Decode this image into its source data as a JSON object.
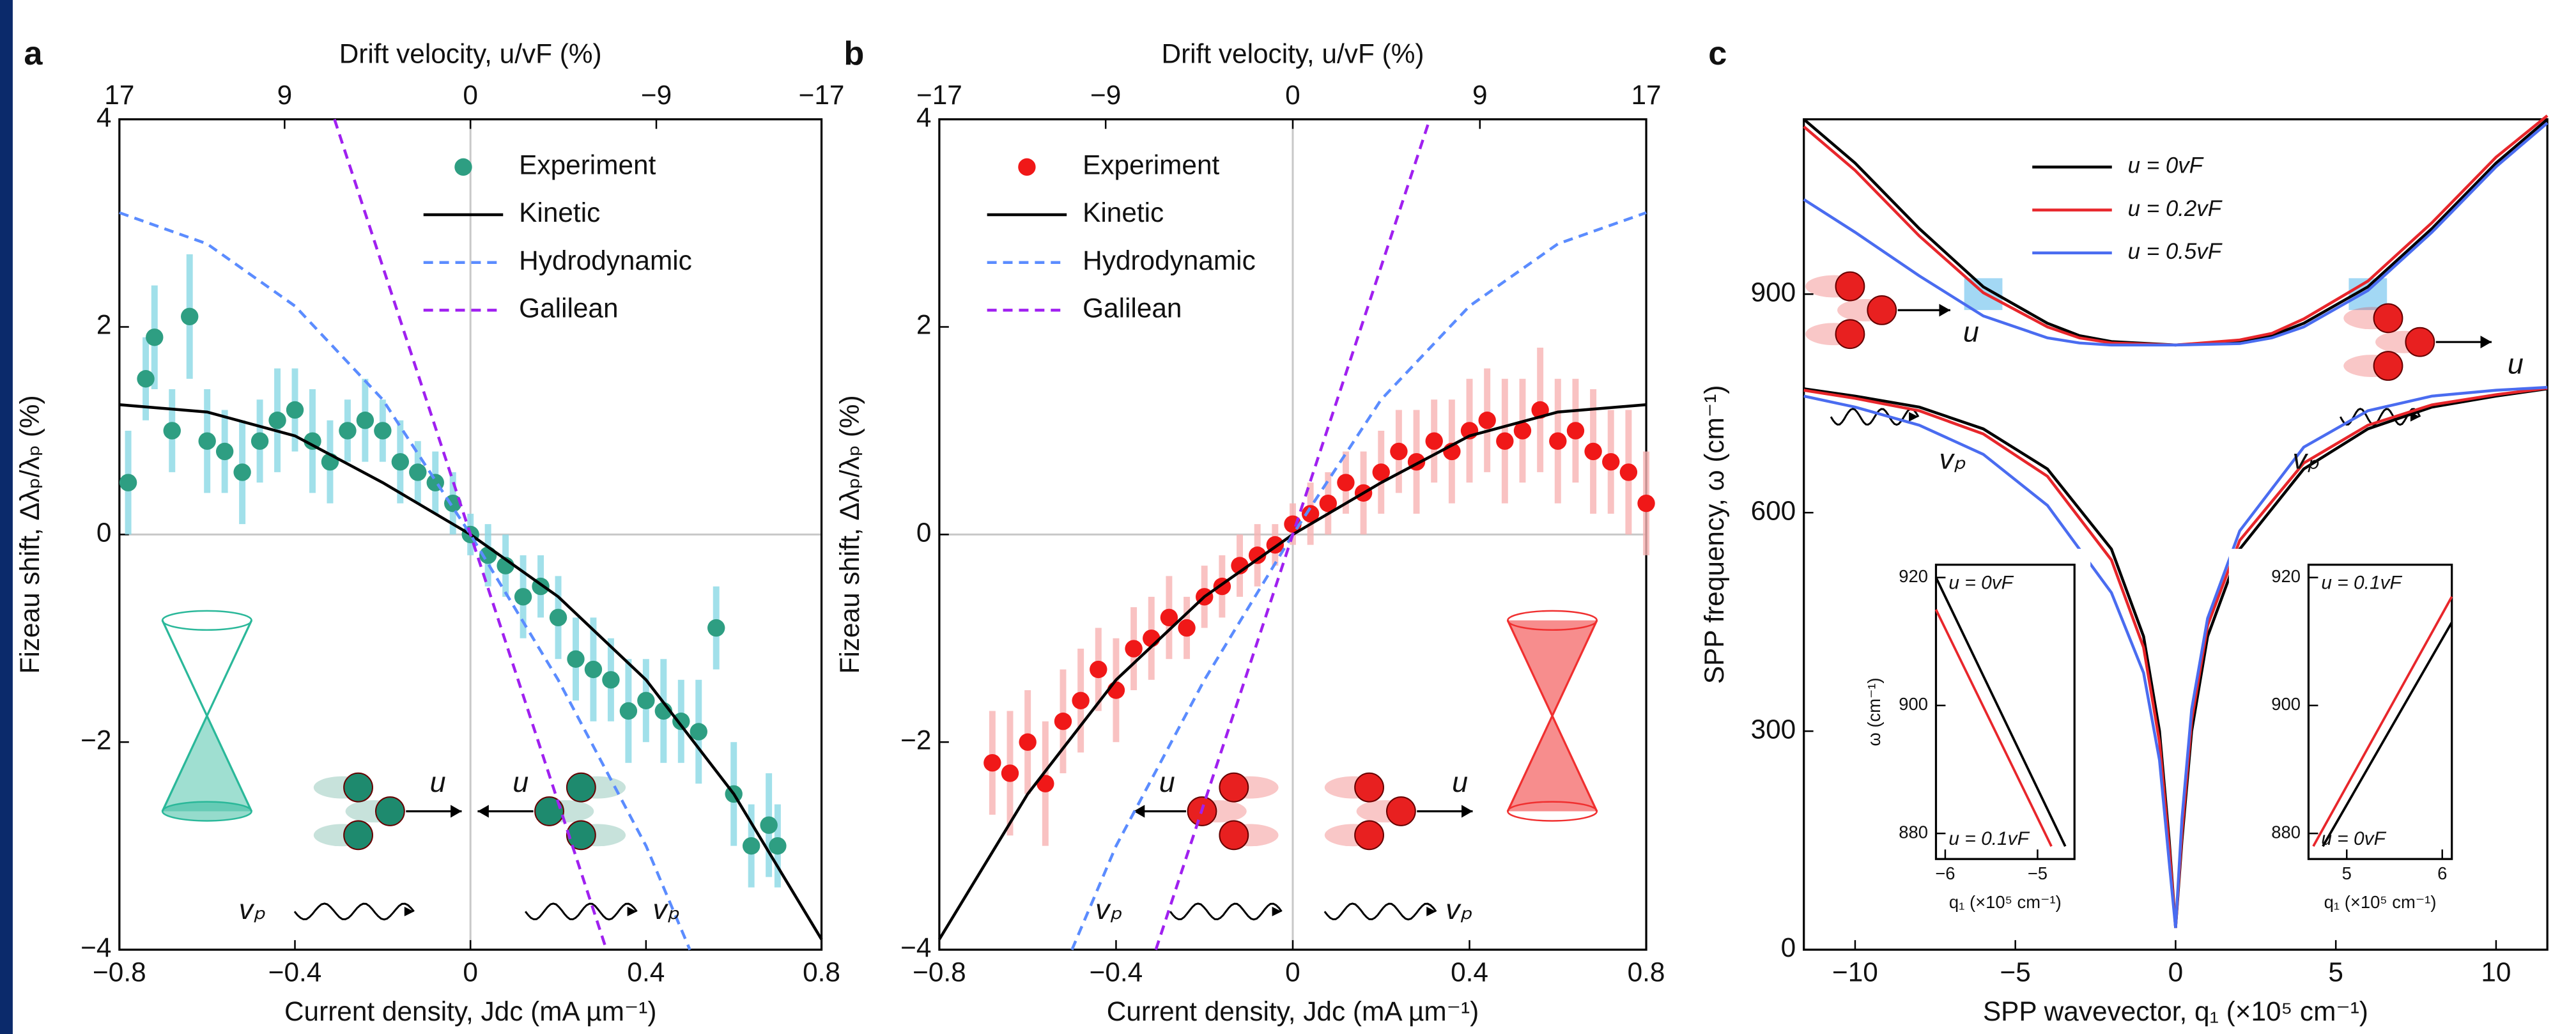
{
  "chart_data": [
    {
      "type": "scatter",
      "panel": "a",
      "x2label": "Drift velocity, u/vF (%)",
      "xlabel": "Current density, Jdc (mA µm⁻¹)",
      "ylabel": "Fizeau shift, Δλₚ/λₚ (%)",
      "xlim": [
        -0.8,
        0.8
      ],
      "xticks": [
        {
          "value": -0.8,
          "label": "−0.8"
        },
        {
          "value": -0.4,
          "label": "−0.4"
        },
        0,
        0.4,
        0.8
      ],
      "x2lim": [
        17,
        -17
      ],
      "x2ticks": [
        17,
        9,
        0,
        {
          "value": -9,
          "label": "−9"
        },
        {
          "value": -17,
          "label": "−17"
        }
      ],
      "ylim": [
        -4,
        4
      ],
      "yticks": [
        {
          "value": -4,
          "label": "−4"
        },
        {
          "value": -2,
          "label": "−2"
        },
        0,
        2,
        4
      ],
      "zero_lines": true,
      "legend": "upper right",
      "annotations": [
        "u",
        "u",
        "vₚ",
        "vₚ"
      ],
      "decor_color": "#2bb89a",
      "series": [
        {
          "name": "Experiment",
          "mode": "markers",
          "color": "#2e9e82",
          "error_color": "#8ad9e6",
          "x": [
            -0.78,
            -0.74,
            -0.72,
            -0.68,
            -0.64,
            -0.6,
            -0.56,
            -0.52,
            -0.48,
            -0.44,
            -0.4,
            -0.36,
            -0.32,
            -0.28,
            -0.24,
            -0.2,
            -0.16,
            -0.12,
            -0.08,
            -0.04,
            0,
            0.04,
            0.08,
            0.12,
            0.16,
            0.2,
            0.24,
            0.28,
            0.32,
            0.36,
            0.4,
            0.44,
            0.48,
            0.52,
            0.56,
            0.6,
            0.64,
            0.68,
            0.7
          ],
          "values": [
            0.5,
            1.5,
            1.9,
            1.0,
            2.1,
            0.9,
            0.8,
            0.6,
            0.9,
            1.1,
            1.2,
            0.9,
            0.7,
            1.0,
            1.1,
            1.0,
            0.7,
            0.6,
            0.5,
            0.3,
            0,
            -0.2,
            -0.3,
            -0.6,
            -0.5,
            -0.8,
            -1.2,
            -1.3,
            -1.4,
            -1.7,
            -1.6,
            -1.7,
            -1.8,
            -1.9,
            -0.9,
            -2.5,
            -3.0,
            -2.8,
            -3.0
          ],
          "errors": [
            0.5,
            0.4,
            0.5,
            0.4,
            0.6,
            0.5,
            0.4,
            0.5,
            0.4,
            0.5,
            0.4,
            0.5,
            0.4,
            0.3,
            0.4,
            0.3,
            0.4,
            0.3,
            0.3,
            0.3,
            0.2,
            0.3,
            0.3,
            0.4,
            0.3,
            0.4,
            0.4,
            0.5,
            0.4,
            0.5,
            0.4,
            0.5,
            0.4,
            0.5,
            0.4,
            0.5,
            0.4,
            0.5,
            0.4
          ]
        },
        {
          "name": "Kinetic",
          "mode": "line",
          "color": "#000000",
          "x": [
            -0.8,
            -0.6,
            -0.4,
            -0.2,
            0,
            0.2,
            0.4,
            0.6,
            0.8
          ],
          "values": [
            1.25,
            1.18,
            0.95,
            0.5,
            0,
            -0.6,
            -1.4,
            -2.5,
            -3.9
          ]
        },
        {
          "name": "Hydrodynamic",
          "mode": "line",
          "dash": true,
          "color": "#5b8cff",
          "x": [
            -0.8,
            -0.6,
            -0.4,
            -0.2,
            0,
            0.2,
            0.4,
            0.5
          ],
          "values": [
            3.1,
            2.8,
            2.2,
            1.3,
            0,
            -1.4,
            -3.0,
            -4
          ]
        },
        {
          "name": "Galilean",
          "mode": "line",
          "dash": true,
          "color": "#a020f0",
          "x": [
            -0.31,
            0.31
          ],
          "values": [
            4,
            -4
          ]
        }
      ]
    },
    {
      "type": "scatter",
      "panel": "b",
      "x2label": "Drift velocity, u/vF (%)",
      "xlabel": "Current density, Jdc (mA µm⁻¹)",
      "ylabel": "Fizeau shift, Δλₚ/λₚ (%)",
      "xlim": [
        -0.8,
        0.8
      ],
      "xticks": [
        {
          "value": -0.8,
          "label": "−0.8"
        },
        {
          "value": -0.4,
          "label": "−0.4"
        },
        0,
        0.4,
        0.8
      ],
      "x2lim": [
        -17,
        17
      ],
      "x2ticks": [
        {
          "value": -17,
          "label": "−17"
        },
        {
          "value": -9,
          "label": "−9"
        },
        0,
        9,
        17
      ],
      "ylim": [
        -4,
        4
      ],
      "yticks": [
        {
          "value": -4,
          "label": "−4"
        },
        {
          "value": -2,
          "label": "−2"
        },
        0,
        2,
        4
      ],
      "zero_lines": true,
      "legend": "upper left",
      "annotations": [
        "u",
        "u",
        "vₚ",
        "vₚ"
      ],
      "decor_color": "#f03030",
      "series": [
        {
          "name": "Experiment",
          "mode": "markers",
          "color": "#f01818",
          "error_color": "#f8b4b4",
          "x": [
            -0.68,
            -0.64,
            -0.6,
            -0.56,
            -0.52,
            -0.48,
            -0.44,
            -0.4,
            -0.36,
            -0.32,
            -0.28,
            -0.24,
            -0.2,
            -0.16,
            -0.12,
            -0.08,
            -0.04,
            0,
            0.04,
            0.08,
            0.12,
            0.16,
            0.2,
            0.24,
            0.28,
            0.32,
            0.36,
            0.4,
            0.44,
            0.48,
            0.52,
            0.56,
            0.6,
            0.64,
            0.68,
            0.72,
            0.76,
            0.8
          ],
          "values": [
            -2.2,
            -2.3,
            -2.0,
            -2.4,
            -1.8,
            -1.6,
            -1.3,
            -1.5,
            -1.1,
            -1.0,
            -0.8,
            -0.9,
            -0.6,
            -0.5,
            -0.3,
            -0.2,
            -0.1,
            0.1,
            0.2,
            0.3,
            0.5,
            0.4,
            0.6,
            0.8,
            0.7,
            0.9,
            0.8,
            1.0,
            1.1,
            0.9,
            1.0,
            1.2,
            0.9,
            1.0,
            0.8,
            0.7,
            0.6,
            0.3
          ],
          "errors": [
            0.5,
            0.6,
            0.5,
            0.6,
            0.5,
            0.5,
            0.4,
            0.5,
            0.4,
            0.4,
            0.4,
            0.3,
            0.3,
            0.3,
            0.3,
            0.3,
            0.2,
            0.2,
            0.3,
            0.3,
            0.3,
            0.4,
            0.4,
            0.4,
            0.5,
            0.4,
            0.5,
            0.5,
            0.5,
            0.6,
            0.5,
            0.6,
            0.6,
            0.5,
            0.6,
            0.5,
            0.6,
            0.5
          ]
        },
        {
          "name": "Kinetic",
          "mode": "line",
          "color": "#000000",
          "x": [
            -0.8,
            -0.6,
            -0.4,
            -0.2,
            0,
            0.2,
            0.4,
            0.6,
            0.8
          ],
          "values": [
            -3.9,
            -2.5,
            -1.4,
            -0.6,
            0,
            0.5,
            0.95,
            1.18,
            1.25
          ]
        },
        {
          "name": "Hydrodynamic",
          "mode": "line",
          "dash": true,
          "color": "#5b8cff",
          "x": [
            -0.5,
            -0.4,
            -0.2,
            0,
            0.2,
            0.4,
            0.6,
            0.8
          ],
          "values": [
            -4,
            -3.0,
            -1.4,
            0,
            1.3,
            2.2,
            2.8,
            3.1
          ]
        },
        {
          "name": "Galilean",
          "mode": "line",
          "dash": true,
          "color": "#a020f0",
          "x": [
            -0.31,
            0.31
          ],
          "values": [
            -4,
            4
          ]
        }
      ]
    },
    {
      "type": "line",
      "panel": "c",
      "xlabel": "SPP wavevector, q₁ (×10⁵ cm⁻¹)",
      "ylabel": "SPP frequency, ω (cm⁻¹)",
      "xlim": [
        -11.6,
        11.6
      ],
      "xticks": [
        {
          "value": -10,
          "label": "−10"
        },
        {
          "value": -5,
          "label": "−5"
        },
        0,
        5,
        10
      ],
      "ylim": [
        0,
        1140
      ],
      "yticks": [
        0,
        300,
        600,
        900
      ],
      "legend": "upper center",
      "annotations": [
        "u",
        "u",
        "vₚ",
        "vₚ"
      ],
      "decor_color": "#f03030",
      "series": [
        {
          "name": "u = 0vF",
          "color": "#000000",
          "branches": [
            {
              "x": [
                -11.6,
                -10,
                -8,
                -6,
                -4,
                -3,
                -2,
                0,
                2,
                3,
                4,
                6,
                8,
                10,
                11.6
              ],
              "values": [
                1140,
                1080,
                990,
                910,
                860,
                843,
                835,
                830,
                835,
                843,
                860,
                910,
                990,
                1080,
                1140
              ]
            },
            {
              "x": [
                -11.6,
                -10,
                -8,
                -6,
                -4,
                -2,
                -1,
                -0.5,
                -0.2,
                0,
                0.2,
                0.5,
                1,
                2,
                4,
                6,
                8,
                10,
                11.6
              ],
              "values": [
                770,
                760,
                745,
                715,
                660,
                550,
                430,
                300,
                150,
                30,
                150,
                300,
                430,
                550,
                660,
                715,
                745,
                760,
                770
              ]
            }
          ]
        },
        {
          "name": "u = 0.2vF",
          "color": "#e8262b",
          "branches": [
            {
              "x": [
                -11.6,
                -10,
                -8,
                -6,
                -4,
                -3,
                -2,
                0,
                2,
                3,
                4,
                6,
                8,
                10,
                11.6
              ],
              "values": [
                1130,
                1070,
                980,
                902,
                855,
                840,
                833,
                830,
                837,
                846,
                866,
                918,
                998,
                1088,
                1145
              ]
            },
            {
              "x": [
                -11.6,
                -10,
                -8,
                -6,
                -4,
                -2,
                -1,
                -0.5,
                -0.2,
                0,
                0.2,
                0.5,
                1,
                2,
                4,
                6,
                8,
                10,
                11.6
              ],
              "values": [
                768,
                757,
                740,
                708,
                650,
                535,
                415,
                285,
                140,
                30,
                160,
                315,
                445,
                562,
                668,
                720,
                748,
                762,
                771
              ]
            }
          ]
        },
        {
          "name": "u = 0.5vF",
          "color": "#4a6cf0",
          "branches": [
            {
              "x": [
                -11.6,
                -10,
                -8,
                -6,
                -4,
                -3,
                -2,
                0,
                2,
                3,
                4,
                6,
                8,
                10,
                11.6
              ],
              "values": [
                1030,
                985,
                925,
                870,
                840,
                833,
                830,
                830,
                832,
                840,
                855,
                905,
                985,
                1075,
                1135
              ]
            },
            {
              "x": [
                -11.6,
                -10,
                -8,
                -6,
                -4,
                -2,
                -1,
                -0.5,
                -0.2,
                0,
                0.2,
                0.5,
                1,
                2,
                4,
                6,
                8,
                10,
                11.6
              ],
              "values": [
                760,
                745,
                720,
                680,
                610,
                490,
                380,
                260,
                120,
                30,
                180,
                330,
                455,
                575,
                690,
                740,
                760,
                768,
                772
              ]
            }
          ]
        }
      ]
    },
    {
      "type": "line",
      "inset": true,
      "ylabel": "ω (cm⁻¹)",
      "xlabel": "q₁ (×10⁵ cm⁻¹)",
      "xlim": [
        -6.1,
        -4.6
      ],
      "xticks": [
        {
          "value": -6,
          "label": "−6"
        },
        {
          "value": -5,
          "label": "−5"
        }
      ],
      "ylim": [
        876,
        922
      ],
      "yticks": [
        880,
        900,
        920
      ],
      "series": [
        {
          "name": "u = 0vF",
          "color": "#000000",
          "x": [
            -6.1,
            -4.7
          ],
          "values": [
            920,
            878
          ]
        },
        {
          "name": "u = 0.1vF",
          "color": "#e8262b",
          "x": [
            -6.1,
            -4.85
          ],
          "values": [
            915,
            878
          ]
        }
      ]
    },
    {
      "type": "line",
      "inset": true,
      "xlabel": "q₁ (×10⁵ cm⁻¹)",
      "xlim": [
        4.6,
        6.1
      ],
      "xticks": [
        5,
        6
      ],
      "ylim": [
        876,
        922
      ],
      "yticks": [
        880,
        900,
        920
      ],
      "series": [
        {
          "name": "u = 0.1vF",
          "color": "#e8262b",
          "x": [
            4.65,
            6.1
          ],
          "values": [
            878,
            917
          ]
        },
        {
          "name": "u = 0vF",
          "color": "#000000",
          "x": [
            4.75,
            6.1
          ],
          "values": [
            878,
            913
          ]
        }
      ]
    }
  ]
}
